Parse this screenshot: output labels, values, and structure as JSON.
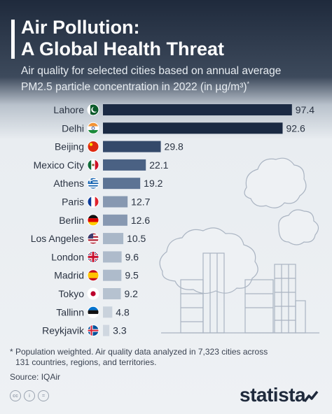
{
  "header": {
    "title_line1": "Air Pollution:",
    "title_line2": "A Global Health Threat",
    "subtitle": "Air quality for selected cities based on annual average PM2.5 particle concentration in 2022 (in µg/m³)",
    "subtitle_mark": "*"
  },
  "chart_data": {
    "type": "bar",
    "orientation": "horizontal",
    "categories": [
      "Lahore",
      "Delhi",
      "Beijing",
      "Mexico City",
      "Athens",
      "Paris",
      "Berlin",
      "Los Angeles",
      "London",
      "Madrid",
      "Tokyo",
      "Tallinn",
      "Reykjavik"
    ],
    "values": [
      97.4,
      92.6,
      29.8,
      22.1,
      19.2,
      12.7,
      12.6,
      10.5,
      9.6,
      9.5,
      9.2,
      4.8,
      3.3
    ],
    "value_labels": [
      "97.4",
      "92.6",
      "29.8",
      "22.1",
      "19.2",
      "12.7",
      "12.6",
      "10.5",
      "9.6",
      "9.5",
      "9.2",
      "4.8",
      "3.3"
    ],
    "flags": [
      "pakistan-flag",
      "india-flag",
      "china-flag",
      "mexico-flag",
      "greece-flag",
      "france-flag",
      "germany-flag",
      "usa-flag",
      "uk-flag",
      "spain-flag",
      "japan-flag",
      "estonia-flag",
      "iceland-flag"
    ],
    "bar_colors": [
      "#1b2a43",
      "#1b2a43",
      "#34496a",
      "#4a6183",
      "#5c7394",
      "#8798b1",
      "#8798b1",
      "#a9b7c8",
      "#aebbcb",
      "#aebbcb",
      "#b6c2d0",
      "#c9d2dc",
      "#cfd7e0"
    ],
    "xlim": [
      0,
      100
    ]
  },
  "footer": {
    "note_line1": "* Population weighted. Air quality data analyzed in 7,323 cities across",
    "note_line2": "131 countries, regions, and territories.",
    "source": "Source: IQAir"
  },
  "license_icons": [
    "cc",
    "i",
    "="
  ],
  "brand": "statista",
  "brand_icon": "statista-logo-icon"
}
